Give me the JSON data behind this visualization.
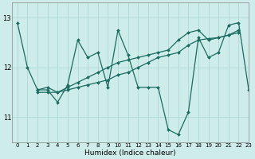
{
  "xlabel": "Humidex (Indice chaleur)",
  "ylabel": "",
  "bg_color": "#ceecea",
  "grid_color": "#aed8d4",
  "line_color": "#1a6b60",
  "xlim": [
    -0.5,
    23
  ],
  "ylim": [
    10.5,
    13.3
  ],
  "yticks": [
    11,
    12,
    13
  ],
  "xticks": [
    0,
    1,
    2,
    3,
    4,
    5,
    6,
    7,
    8,
    9,
    10,
    11,
    12,
    13,
    14,
    15,
    16,
    17,
    18,
    19,
    20,
    21,
    22,
    23
  ],
  "series1_x": [
    0,
    1,
    2,
    3,
    4,
    5,
    6,
    7,
    8,
    9,
    10,
    11,
    12,
    13,
    14,
    15,
    16,
    17,
    18,
    19,
    20,
    21,
    22,
    23
  ],
  "series1_y": [
    12.9,
    12.0,
    11.55,
    11.55,
    11.3,
    11.65,
    12.55,
    12.2,
    12.3,
    11.6,
    12.75,
    12.25,
    11.6,
    11.6,
    11.6,
    10.75,
    10.65,
    11.1,
    12.6,
    12.2,
    12.3,
    12.85,
    12.9,
    11.55
  ],
  "series2_x": [
    2,
    3,
    4,
    5,
    6,
    7,
    8,
    9,
    10,
    11,
    12,
    13,
    14,
    15,
    16,
    17,
    18,
    19,
    20,
    21,
    22
  ],
  "series2_y": [
    11.55,
    11.6,
    11.5,
    11.6,
    11.7,
    11.8,
    11.9,
    12.0,
    12.1,
    12.15,
    12.2,
    12.25,
    12.3,
    12.35,
    12.55,
    12.7,
    12.75,
    12.55,
    12.6,
    12.65,
    12.75
  ],
  "series3_x": [
    2,
    3,
    4,
    5,
    6,
    7,
    8,
    9,
    10,
    11,
    12,
    13,
    14,
    15,
    16,
    17,
    18,
    19,
    20,
    21,
    22
  ],
  "series3_y": [
    11.5,
    11.5,
    11.5,
    11.55,
    11.6,
    11.65,
    11.7,
    11.75,
    11.85,
    11.9,
    12.0,
    12.1,
    12.2,
    12.25,
    12.3,
    12.45,
    12.55,
    12.58,
    12.6,
    12.65,
    12.7
  ]
}
